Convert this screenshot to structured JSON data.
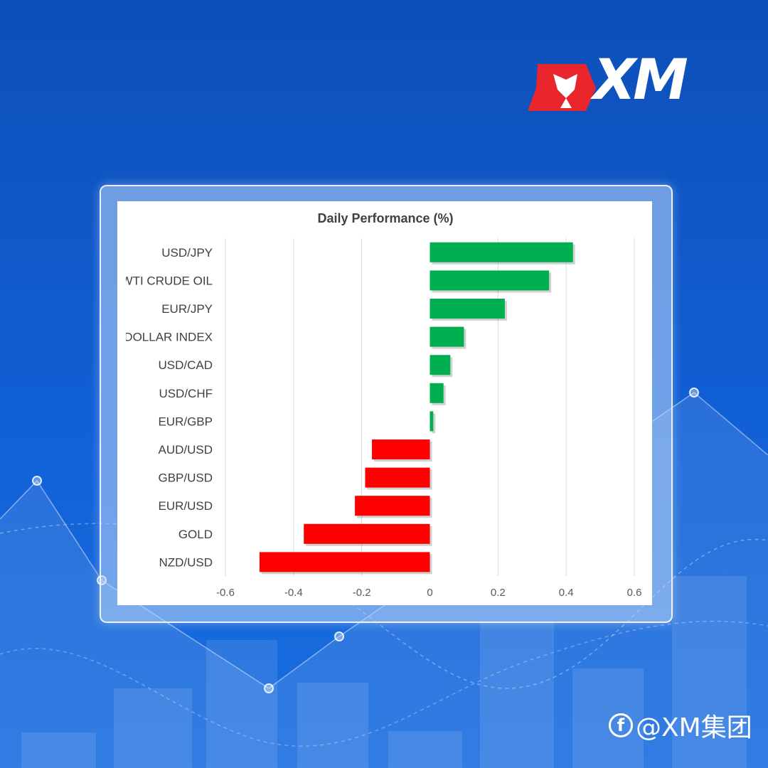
{
  "brand": {
    "logo_text": "XM",
    "handle": "@XM集团",
    "social_icon": "facebook-icon"
  },
  "colors": {
    "positive": "#00b050",
    "negative": "#ff0000",
    "background": "#1160d6",
    "grid": "#d9d9d9"
  },
  "chart_data": {
    "type": "bar",
    "orientation": "horizontal",
    "title": "Daily Performance (%)",
    "categories": [
      "USD/JPY",
      "WTI CRUDE OIL",
      "EUR/JPY",
      "DOLLAR INDEX",
      "USD/CAD",
      "USD/CHF",
      "EUR/GBP",
      "AUD/USD",
      "GBP/USD",
      "EUR/USD",
      "GOLD",
      "NZD/USD"
    ],
    "values": [
      0.42,
      0.35,
      0.22,
      0.1,
      0.06,
      0.04,
      0.01,
      -0.17,
      -0.19,
      -0.22,
      -0.37,
      -0.5
    ],
    "xlim": [
      -0.6,
      0.6
    ],
    "xticks": [
      "-0.6",
      "-0.4",
      "-0.2",
      "0",
      "0.2",
      "0.4",
      "0.6"
    ],
    "xlabel": "",
    "ylabel": "",
    "grid": "vertical",
    "legend": "none"
  }
}
